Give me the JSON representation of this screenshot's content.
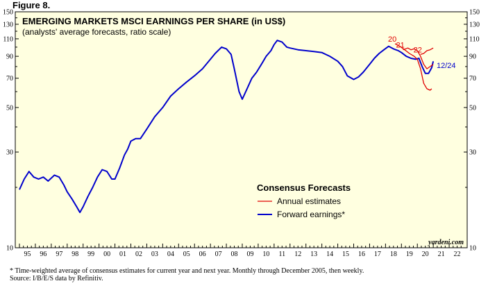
{
  "figure_label": "Figure 8.",
  "footnote": {
    "line1": "*  Time-weighted average of consensus estimates for current year and next year. Monthly through December 2005, then weekly.",
    "line2": "Source: I/B/E/S data by Refinitiv."
  },
  "colors": {
    "background": "#ffffe0",
    "forward": "#0000cc",
    "annual": "#e00000",
    "text": "#000000"
  },
  "chart_data": {
    "type": "line",
    "title": "EMERGING MARKETS MSCI EARNINGS PER SHARE (in US$)",
    "subtitle": "(analysts' average forecasts, ratio scale)",
    "y_scale": "log",
    "ylim": [
      10,
      150
    ],
    "y_ticks": [
      10,
      30,
      50,
      70,
      90,
      110,
      130,
      150
    ],
    "x_ticks": [
      "95",
      "96",
      "97",
      "98",
      "99",
      "00",
      "01",
      "02",
      "03",
      "04",
      "05",
      "06",
      "07",
      "08",
      "09",
      "10",
      "11",
      "12",
      "13",
      "14",
      "15",
      "16",
      "17",
      "18",
      "19",
      "20",
      "21",
      "22"
    ],
    "xlim": [
      1995.0,
      2023.0
    ],
    "legend_title": "Consensus Forecasts",
    "legend_position": "center-right",
    "watermark": "yardeni.com",
    "annotation": "12/24",
    "series": [
      {
        "name": "Forward earnings*",
        "x": [
          1995.0,
          1995.3,
          1995.6,
          1995.9,
          1996.2,
          1996.5,
          1996.8,
          1997.2,
          1997.5,
          1997.8,
          1998.0,
          1998.3,
          1998.6,
          1998.8,
          1999.0,
          1999.3,
          1999.6,
          1999.9,
          2000.2,
          2000.5,
          2000.8,
          2001.0,
          2001.3,
          2001.6,
          2001.8,
          2002.0,
          2002.3,
          2002.6,
          2003.0,
          2003.5,
          2004.0,
          2004.5,
          2005.0,
          2005.5,
          2006.0,
          2006.5,
          2007.0,
          2007.3,
          2007.7,
          2008.0,
          2008.3,
          2008.5,
          2008.8,
          2009.0,
          2009.3,
          2009.6,
          2009.9,
          2010.2,
          2010.5,
          2010.8,
          2011.0,
          2011.2,
          2011.5,
          2011.8,
          2012.0,
          2012.5,
          2013.0,
          2013.5,
          2014.0,
          2014.5,
          2015.0,
          2015.3,
          2015.6,
          2016.0,
          2016.3,
          2016.6,
          2017.0,
          2017.3,
          2017.6,
          2017.9,
          2018.2,
          2018.5,
          2018.8,
          2019.0,
          2019.3,
          2019.6,
          2019.9,
          2020.1,
          2020.3,
          2020.5,
          2020.7,
          2020.9,
          2021.0
        ],
        "values": [
          19.5,
          22,
          24,
          22.5,
          22,
          22.5,
          21.5,
          23,
          22.5,
          20.5,
          19,
          17.5,
          16,
          15,
          16,
          18,
          20,
          22.5,
          24.5,
          24,
          22,
          22,
          25,
          29,
          31,
          34,
          35,
          35,
          39,
          45,
          50,
          57,
          62,
          67,
          72,
          78,
          87,
          93,
          100,
          98,
          92,
          78,
          60,
          55,
          62,
          70,
          75,
          82,
          90,
          96,
          103,
          108,
          106,
          100,
          99,
          97,
          96,
          95,
          94,
          90,
          85,
          80,
          72,
          69,
          71,
          75,
          82,
          88,
          93,
          97,
          101,
          98,
          96,
          94,
          90,
          88,
          87,
          88,
          80,
          74,
          74,
          79,
          85
        ]
      },
      {
        "name": "Annual estimates",
        "line_labels": [
          "20",
          "21",
          "22"
        ],
        "segments": [
          {
            "label": "20",
            "x": [
              2018.6,
              2018.9,
              2019.2,
              2019.5,
              2019.8,
              2020.0,
              2020.2,
              2020.4,
              2020.6,
              2020.8,
              2020.9
            ],
            "values": [
              104,
              101,
              97,
              93,
              90,
              87,
              78,
              66,
              62,
              61,
              62
            ]
          },
          {
            "label": "21",
            "x": [
              2019.1,
              2019.4,
              2019.6,
              2019.8,
              2020.0,
              2020.2,
              2020.4,
              2020.6,
              2020.8,
              2021.0
            ],
            "values": [
              97,
              99,
              97,
              98,
              96,
              90,
              82,
              78,
              80,
              82
            ]
          },
          {
            "label": "22",
            "x": [
              2020.2,
              2020.4,
              2020.6,
              2020.8,
              2021.0
            ],
            "values": [
              92,
              93,
              96,
              97,
              99
            ]
          }
        ]
      }
    ]
  }
}
